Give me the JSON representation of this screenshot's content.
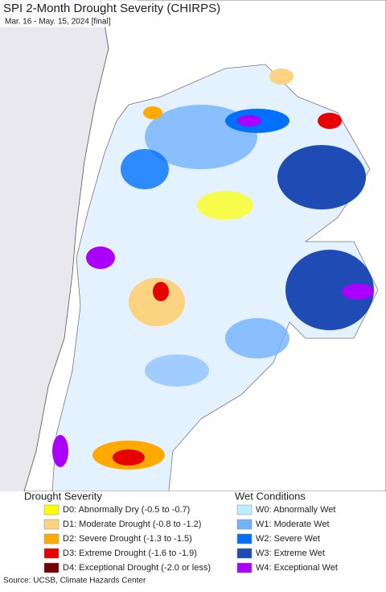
{
  "title": "SPI 2-Month Drought Severity (CHIRPS)",
  "subtitle": "Mar. 16 - May. 15, 2024 [final]",
  "legend": {
    "drought": {
      "title": "Drought Severity",
      "items": [
        {
          "label": "D0: Abnormally Dry (-0.5 to -0.7)",
          "color": "#ffff00"
        },
        {
          "label": "D1: Moderate Drought (-0.8 to -1.2)",
          "color": "#fcd37f"
        },
        {
          "label": "D2: Severe Drought (-1.3 to -1.5)",
          "color": "#ffaa00"
        },
        {
          "label": "D3: Extreme Drought (-1.6 to -1.9)",
          "color": "#e60000"
        },
        {
          "label": "D4: Exceptional Drought (-2.0 or less)",
          "color": "#730000"
        }
      ]
    },
    "wet": {
      "title": "Wet Conditions",
      "items": [
        {
          "label": "W0: Abnormally Wet",
          "color": "#bdeeff"
        },
        {
          "label": "W1: Moderate Wet",
          "color": "#73b2ff"
        },
        {
          "label": "W2: Severe Wet",
          "color": "#0070ff"
        },
        {
          "label": "W3: Extreme Wet",
          "color": "#1f4bb5"
        },
        {
          "label": "W4: Exceptional Wet",
          "color": "#aa00ff"
        }
      ]
    }
  },
  "source": "Source: UCSB, Climate Hazards Center"
}
